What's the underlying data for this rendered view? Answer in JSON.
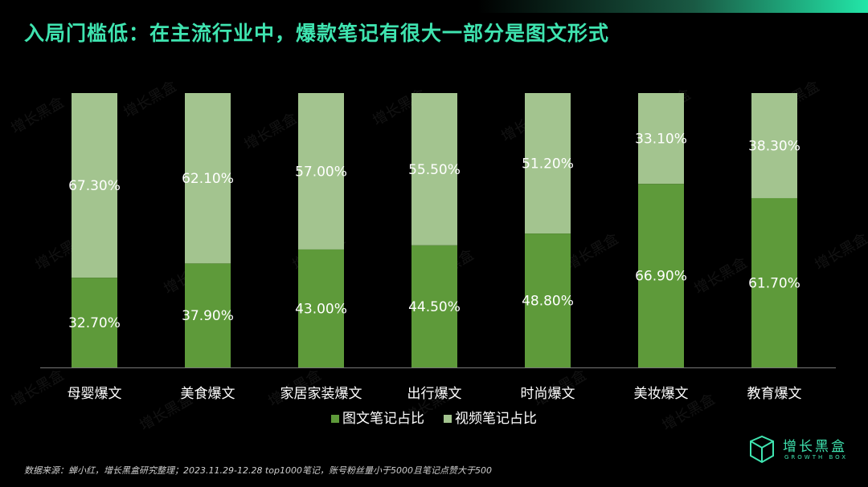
{
  "title": "入局门槛低：在主流行业中，爆款笔记有很大一部分是图文形式",
  "source_note": "数据来源：蝉小红，增长黑盒研究整理；2023.11.29-12.28 top1000笔记，账号粉丝量小于5000且笔记点赞大于500",
  "brand": {
    "name": "增长黑盒",
    "sub": "GROWTH BOX"
  },
  "watermark_text": "增长黑盒",
  "colors": {
    "image_text": "#5e9a3a",
    "video": "#a3c48f",
    "accent": "#3fe4b0",
    "background": "#000000"
  },
  "chart_data": {
    "type": "bar",
    "stacked": true,
    "percent": true,
    "categories": [
      "母婴爆文",
      "美食爆文",
      "家居家装爆文",
      "出行爆文",
      "时尚爆文",
      "美妆爆文",
      "教育爆文"
    ],
    "series": [
      {
        "name": "图文笔记占比",
        "values": [
          32.7,
          37.9,
          43.0,
          44.5,
          48.8,
          66.9,
          61.7
        ],
        "labels": [
          "32.70%",
          "37.90%",
          "43.00%",
          "44.50%",
          "48.80%",
          "66.90%",
          "61.70%"
        ],
        "color": "#5e9a3a"
      },
      {
        "name": "视频笔记占比",
        "values": [
          67.3,
          62.1,
          57.0,
          55.5,
          51.2,
          33.1,
          38.3
        ],
        "labels": [
          "67.30%",
          "62.10%",
          "57.00%",
          "55.50%",
          "51.20%",
          "33.10%",
          "38.30%"
        ],
        "color": "#a3c48f"
      }
    ],
    "ylim": [
      0,
      100
    ],
    "grid": false,
    "legend_position": "bottom-center"
  }
}
